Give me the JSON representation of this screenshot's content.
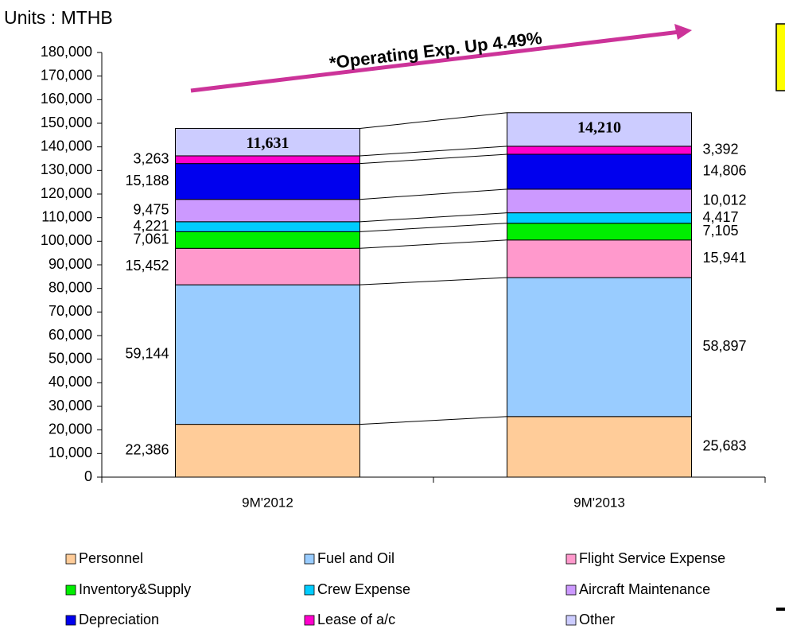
{
  "chart_data": {
    "type": "stacked_bar",
    "title": "Units : MTHB",
    "annotation": "*Operating Exp. Up 4.49%",
    "categories": [
      "9M'2012",
      "9M'2013"
    ],
    "ylim": [
      0,
      180000
    ],
    "yticks": [
      0,
      {
        "value": 10000,
        "label": "10,000"
      },
      {
        "value": 20000,
        "label": "20,000"
      },
      {
        "value": 30000,
        "label": "30,000"
      },
      {
        "value": 40000,
        "label": "40,000"
      },
      {
        "value": 50000,
        "label": "50,000"
      },
      {
        "value": 60000,
        "label": "60,000"
      },
      {
        "value": 70000,
        "label": "70,000"
      },
      {
        "value": 80000,
        "label": "80,000"
      },
      {
        "value": 90000,
        "label": "90,000"
      },
      {
        "value": 100000,
        "label": "100,000"
      },
      {
        "value": 110000,
        "label": "110,000"
      },
      {
        "value": 120000,
        "label": "120,000"
      },
      {
        "value": 130000,
        "label": "130,000"
      },
      {
        "value": 140000,
        "label": "140,000"
      },
      {
        "value": 150000,
        "label": "150,000"
      },
      {
        "value": 160000,
        "label": "160,000"
      },
      {
        "value": 170000,
        "label": "170,000"
      },
      {
        "value": 180000,
        "label": "180,000"
      }
    ],
    "legend": "bottom",
    "series": [
      {
        "name": "Personnel",
        "color": "#ffcc99",
        "values": [
          22386,
          25683
        ],
        "value_labels": [
          "22,386",
          "25,683"
        ]
      },
      {
        "name": "Fuel and Oil",
        "color": "#99ccff",
        "values": [
          59144,
          58897
        ],
        "value_labels": [
          "59,144",
          "58,897"
        ]
      },
      {
        "name": "Flight Service Expense",
        "color": "#ff99cc",
        "values": [
          15452,
          15941
        ],
        "value_labels": [
          "15,452",
          "15,941"
        ]
      },
      {
        "name": "Inventory&Supply",
        "color": "#00ee00",
        "values": [
          7061,
          7105
        ],
        "value_labels": [
          "7,061",
          "7,105"
        ]
      },
      {
        "name": "Crew Expense",
        "color": "#00ccff",
        "values": [
          4221,
          4417
        ],
        "value_labels": [
          "4,221",
          "4,417"
        ]
      },
      {
        "name": "Aircraft Maintenance",
        "color": "#cc99ff",
        "values": [
          9475,
          10012
        ],
        "value_labels": [
          "9,475",
          "10,012"
        ]
      },
      {
        "name": "Depreciation",
        "color": "#0000ee",
        "values": [
          15188,
          14806
        ],
        "value_labels": [
          "15,188",
          "14,806"
        ]
      },
      {
        "name": "Lease of a/c",
        "color": "#ff00cc",
        "values": [
          3263,
          3392
        ],
        "value_labels": [
          "3,263",
          "3,392"
        ]
      },
      {
        "name": "Other",
        "color": "#ccccff",
        "values": [
          11631,
          14210
        ],
        "value_labels": [
          "11,631",
          "14,210"
        ]
      }
    ]
  }
}
